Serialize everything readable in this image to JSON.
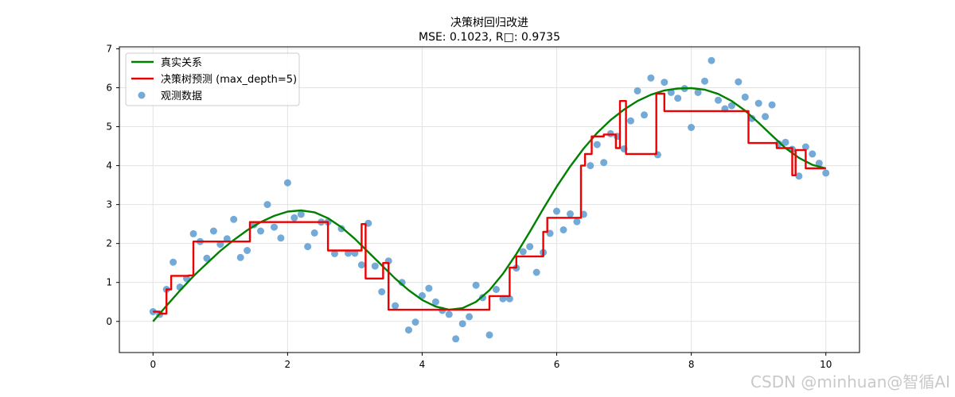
{
  "chart_data": {
    "type": "line",
    "title": "决策树回归改进",
    "subtitle": "MSE: 0.1023, R□: 0.9735",
    "xlim": [
      -0.5,
      10.5
    ],
    "ylim": [
      -0.8,
      7.05
    ],
    "xticks": [
      0,
      2,
      4,
      6,
      8,
      10
    ],
    "yticks": [
      0,
      1,
      2,
      3,
      4,
      5,
      6,
      7
    ],
    "grid": true,
    "legend_position": "top-left",
    "series": [
      {
        "name": "真实关系",
        "kind": "line",
        "color": "#008000",
        "x": [
          0,
          0.2,
          0.4,
          0.6,
          0.8,
          1,
          1.2,
          1.4,
          1.6,
          1.8,
          2,
          2.2,
          2.4,
          2.6,
          2.8,
          3,
          3.2,
          3.4,
          3.6,
          3.8,
          4,
          4.2,
          4.4,
          4.6,
          4.8,
          5,
          5.2,
          5.4,
          5.6,
          5.8,
          6,
          6.2,
          6.4,
          6.6,
          6.8,
          7,
          7.2,
          7.4,
          7.6,
          7.8,
          8,
          8.2,
          8.4,
          8.6,
          8.8,
          9,
          9.2,
          9.4,
          9.6,
          9.8,
          10
        ],
        "y": [
          0,
          0.4,
          0.79,
          1.16,
          1.49,
          1.81,
          2.09,
          2.34,
          2.55,
          2.71,
          2.82,
          2.85,
          2.8,
          2.65,
          2.42,
          2.12,
          1.78,
          1.44,
          1.1,
          0.8,
          0.55,
          0.38,
          0.3,
          0.34,
          0.5,
          0.8,
          1.22,
          1.73,
          2.3,
          2.89,
          3.46,
          3.98,
          4.44,
          4.84,
          5.17,
          5.44,
          5.66,
          5.82,
          5.93,
          5.98,
          5.99,
          5.95,
          5.84,
          5.66,
          5.41,
          5.1,
          4.77,
          4.45,
          4.2,
          4.02,
          3.93
        ]
      },
      {
        "name": "决策树预测 (max_depth=5)",
        "kind": "step",
        "color": "#ee0000",
        "x": [
          0,
          0.1,
          0.1,
          0.2,
          0.2,
          0.27,
          0.27,
          0.53,
          0.53,
          0.6,
          0.6,
          1.12,
          1.12,
          1.44,
          1.44,
          2.6,
          2.6,
          3.1,
          3.1,
          3.16,
          3.16,
          3.23,
          3.23,
          3.42,
          3.42,
          3.5,
          3.5,
          5.0,
          5.0,
          5.3,
          5.3,
          5.4,
          5.4,
          5.8,
          5.8,
          5.86,
          5.86,
          6.36,
          6.36,
          6.42,
          6.42,
          6.52,
          6.52,
          6.7,
          6.7,
          6.88,
          6.88,
          6.94,
          6.94,
          7.03,
          7.03,
          7.42,
          7.42,
          7.48,
          7.48,
          7.55,
          7.55,
          7.6,
          7.6,
          8.85,
          8.85,
          9.27,
          9.27,
          9.5,
          9.5,
          9.55,
          9.55,
          9.6,
          9.6,
          9.7,
          9.7,
          9.83,
          9.83,
          10.0
        ],
        "y": [
          0.25,
          0.25,
          0.2,
          0.2,
          0.82,
          0.82,
          1.17,
          1.17,
          1.18,
          1.18,
          2.05,
          2.05,
          2.05,
          2.05,
          2.55,
          2.55,
          1.82,
          1.82,
          2.5,
          2.5,
          1.1,
          1.1,
          1.1,
          1.1,
          1.5,
          1.5,
          0.3,
          0.3,
          0.65,
          0.65,
          1.38,
          1.38,
          1.67,
          1.67,
          2.3,
          2.3,
          2.66,
          2.66,
          4.0,
          4.0,
          4.3,
          4.3,
          4.75,
          4.75,
          4.8,
          4.8,
          4.45,
          4.45,
          5.66,
          5.66,
          4.3,
          4.3,
          4.3,
          4.3,
          5.85,
          5.85,
          5.85,
          5.85,
          5.4,
          5.4,
          4.58,
          4.58,
          4.45,
          4.45,
          3.75,
          3.75,
          4.4,
          4.4,
          4.4,
          4.4,
          3.93,
          3.93,
          3.93,
          3.93
        ]
      },
      {
        "name": "观测数据",
        "kind": "scatter",
        "color": "#5b9bd0",
        "x": [
          0,
          0.1,
          0.2,
          0.3,
          0.4,
          0.5,
          0.6,
          0.7,
          0.8,
          0.9,
          1.0,
          1.1,
          1.2,
          1.3,
          1.4,
          1.5,
          1.6,
          1.7,
          1.8,
          1.9,
          2.0,
          2.1,
          2.2,
          2.3,
          2.4,
          2.5,
          2.6,
          2.7,
          2.8,
          2.9,
          3.0,
          3.1,
          3.2,
          3.3,
          3.4,
          3.5,
          3.6,
          3.7,
          3.8,
          3.9,
          4.0,
          4.1,
          4.2,
          4.3,
          4.4,
          4.5,
          4.6,
          4.7,
          4.8,
          4.9,
          5.0,
          5.1,
          5.2,
          5.3,
          5.4,
          5.5,
          5.6,
          5.7,
          5.8,
          5.9,
          6.0,
          6.1,
          6.2,
          6.3,
          6.4,
          6.5,
          6.6,
          6.7,
          6.8,
          6.9,
          7.0,
          7.1,
          7.2,
          7.3,
          7.4,
          7.5,
          7.6,
          7.7,
          7.8,
          7.9,
          8.0,
          8.1,
          8.2,
          8.3,
          8.4,
          8.5,
          8.6,
          8.7,
          8.8,
          8.9,
          9.0,
          9.1,
          9.2,
          9.3,
          9.4,
          9.5,
          9.6,
          9.7,
          9.8,
          9.9,
          10.0
        ],
        "y": [
          0.25,
          0.18,
          0.82,
          1.52,
          0.88,
          1.1,
          2.25,
          2.05,
          1.62,
          2.32,
          1.98,
          2.12,
          2.62,
          1.64,
          1.82,
          2.48,
          2.32,
          3.0,
          2.42,
          2.14,
          3.56,
          2.66,
          2.75,
          1.92,
          2.27,
          2.55,
          2.55,
          1.74,
          2.38,
          1.75,
          1.75,
          1.45,
          2.52,
          1.42,
          0.76,
          1.55,
          0.4,
          1.0,
          -0.22,
          -0.02,
          0.66,
          0.85,
          0.5,
          0.28,
          0.18,
          -0.45,
          -0.06,
          0.12,
          0.93,
          0.61,
          -0.35,
          0.82,
          0.58,
          0.58,
          1.37,
          1.79,
          1.92,
          1.26,
          1.77,
          2.26,
          2.83,
          2.35,
          2.76,
          2.56,
          2.75,
          4.0,
          4.54,
          4.08,
          4.82,
          4.75,
          4.43,
          5.15,
          5.92,
          5.3,
          6.25,
          4.28,
          6.14,
          5.88,
          5.73,
          5.98,
          4.98,
          5.88,
          6.17,
          6.7,
          5.68,
          5.46,
          5.54,
          6.15,
          5.76,
          5.21,
          5.6,
          5.26,
          5.56,
          4.56,
          4.6,
          4.42,
          3.73,
          4.48,
          4.3,
          4.06,
          3.81
        ]
      }
    ]
  },
  "watermark": "CSDN @minhuan@智循AI"
}
